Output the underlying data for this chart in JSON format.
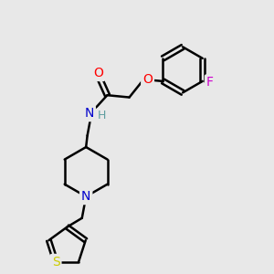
{
  "bg_color": "#e8e8e8",
  "bond_color": "#000000",
  "bond_width": 1.8,
  "atom_colors": {
    "O": "#ff0000",
    "N": "#0000cc",
    "S": "#cccc00",
    "F": "#cc00cc",
    "H": "#5f9ea0"
  },
  "font_size": 10,
  "figsize": [
    3.0,
    3.0
  ],
  "dpi": 100
}
